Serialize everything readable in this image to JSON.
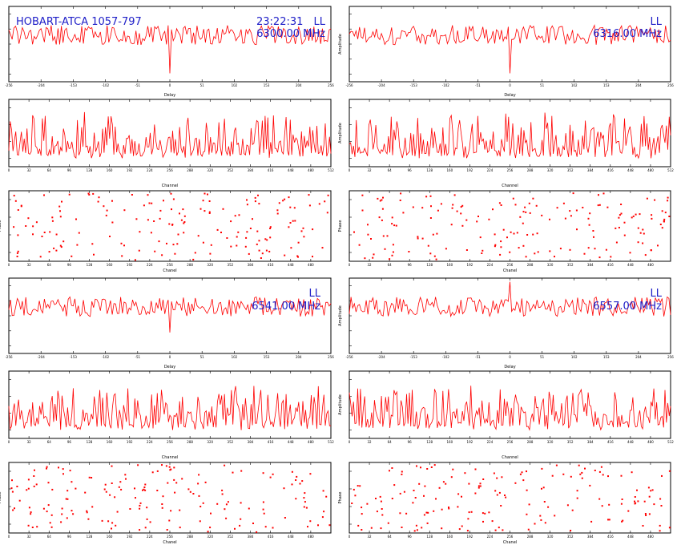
{
  "header": {
    "source": "HOBART-ATCA 1057-797",
    "time": "23:22:31",
    "polarization": "LL"
  },
  "colors": {
    "trace": "#ff0000",
    "annotation": "#2020c8",
    "frame": "#000000"
  },
  "chart_data": [
    {
      "type": "line",
      "group": 0,
      "column": 0,
      "panel": "delay",
      "xlabel": "Delay",
      "ylabel": "",
      "pol": "LL",
      "freq": "6300.00 MHz",
      "xlim": [
        -256,
        256
      ],
      "ylim": [
        -1,
        1
      ],
      "xticks": [
        "-256",
        "-204",
        "-153",
        "-102",
        "-51",
        "0",
        "51",
        "102",
        "153",
        "204",
        "256"
      ],
      "yticks": [
        "",
        "",
        "",
        "",
        ""
      ],
      "spike": {
        "x": 0,
        "direction": "down",
        "depth": 0.82
      }
    },
    {
      "type": "line",
      "group": 0,
      "column": 0,
      "panel": "channel",
      "xlabel": "Channel",
      "ylabel": "",
      "xlim": [
        0,
        512
      ],
      "ylim": [
        0,
        3
      ],
      "xticks": [
        "0",
        "32",
        "64",
        "96",
        "128",
        "160",
        "192",
        "224",
        "256",
        "288",
        "320",
        "352",
        "384",
        "416",
        "448",
        "480",
        "512"
      ],
      "yticks": [
        "",
        "",
        "",
        ""
      ]
    },
    {
      "type": "scatter",
      "group": 0,
      "column": 0,
      "panel": "phase",
      "xlabel": "Chanel",
      "ylabel": "Phase",
      "xlim": [
        0,
        512
      ],
      "ylim": [
        -180,
        180
      ],
      "xticks": [
        "0",
        "32",
        "64",
        "96",
        "128",
        "160",
        "192",
        "224",
        "256",
        "288",
        "320",
        "352",
        "384",
        "416",
        "448",
        "480"
      ],
      "yticks": [
        "",
        "",
        "",
        ""
      ]
    },
    {
      "type": "line",
      "group": 0,
      "column": 1,
      "panel": "delay",
      "xlabel": "Delay",
      "ylabel": "Amplitude",
      "pol": "LL",
      "freq": "6316.00 MHz",
      "xlim": [
        -256,
        256
      ],
      "ylim": [
        -1,
        1
      ],
      "xticks": [
        "-256",
        "-204",
        "-153",
        "-102",
        "-51",
        "0",
        "51",
        "102",
        "153",
        "204",
        "256"
      ],
      "yticks": [
        "",
        "",
        "",
        "",
        ""
      ],
      "spike": {
        "x": 0,
        "direction": "down",
        "depth": 0.82
      }
    },
    {
      "type": "line",
      "group": 0,
      "column": 1,
      "panel": "channel",
      "xlabel": "Channel",
      "ylabel": "Amplitude",
      "xlim": [
        0,
        512
      ],
      "ylim": [
        0,
        3
      ],
      "xticks": [
        "0",
        "32",
        "64",
        "96",
        "128",
        "160",
        "192",
        "224",
        "256",
        "288",
        "320",
        "352",
        "384",
        "416",
        "448",
        "480",
        "512"
      ],
      "yticks": [
        "",
        "",
        "",
        ""
      ]
    },
    {
      "type": "scatter",
      "group": 0,
      "column": 1,
      "panel": "phase",
      "xlabel": "Chanel",
      "ylabel": "Phase",
      "xlim": [
        0,
        512
      ],
      "ylim": [
        -180,
        180
      ],
      "xticks": [
        "0",
        "32",
        "64",
        "96",
        "128",
        "160",
        "192",
        "224",
        "256",
        "288",
        "320",
        "352",
        "384",
        "416",
        "448",
        "480"
      ],
      "yticks": [
        "",
        "",
        "",
        ""
      ]
    },
    {
      "type": "line",
      "group": 1,
      "column": 0,
      "panel": "delay",
      "xlabel": "Delay",
      "ylabel": "",
      "pol": "LL",
      "freq": "6541.00 MHz",
      "xlim": [
        -256,
        256
      ],
      "ylim": [
        -1,
        1
      ],
      "xticks": [
        "-256",
        "-204",
        "-153",
        "-102",
        "-51",
        "0",
        "51",
        "102",
        "153",
        "204",
        "256"
      ],
      "yticks": [
        "",
        "",
        "",
        "",
        ""
      ],
      "spike": {
        "x": 0,
        "direction": "down",
        "depth": 0.55
      }
    },
    {
      "type": "line",
      "group": 1,
      "column": 0,
      "panel": "channel",
      "xlabel": "Channel",
      "ylabel": "",
      "xlim": [
        0,
        512
      ],
      "ylim": [
        0,
        3
      ],
      "xticks": [
        "0",
        "32",
        "64",
        "96",
        "128",
        "160",
        "192",
        "224",
        "256",
        "288",
        "320",
        "352",
        "384",
        "416",
        "448",
        "480",
        "512"
      ],
      "yticks": [
        "",
        "",
        "",
        ""
      ]
    },
    {
      "type": "scatter",
      "group": 1,
      "column": 0,
      "panel": "phase",
      "xlabel": "Chanel",
      "ylabel": "Phase",
      "xlim": [
        0,
        512
      ],
      "ylim": [
        -180,
        180
      ],
      "xticks": [
        "0",
        "32",
        "64",
        "96",
        "128",
        "160",
        "192",
        "224",
        "256",
        "288",
        "320",
        "352",
        "384",
        "416",
        "448",
        "480"
      ],
      "yticks": [
        "",
        "",
        "",
        ""
      ]
    },
    {
      "type": "line",
      "group": 1,
      "column": 1,
      "panel": "delay",
      "xlabel": "Delay",
      "ylabel": "Amplitude",
      "pol": "LL",
      "freq": "6557.00 MHz",
      "xlim": [
        -256,
        256
      ],
      "ylim": [
        -1,
        1
      ],
      "xticks": [
        "-256",
        "-204",
        "-153",
        "-102",
        "-51",
        "0",
        "51",
        "102",
        "153",
        "204",
        "256"
      ],
      "yticks": [
        "",
        "",
        "",
        "",
        ""
      ],
      "spike": {
        "x": 0,
        "direction": "up",
        "depth": 0.5
      }
    },
    {
      "type": "line",
      "group": 1,
      "column": 1,
      "panel": "channel",
      "xlabel": "Channel",
      "ylabel": "Amplitude",
      "xlim": [
        0,
        512
      ],
      "ylim": [
        0,
        3
      ],
      "xticks": [
        "0",
        "32",
        "64",
        "96",
        "128",
        "160",
        "192",
        "224",
        "256",
        "288",
        "320",
        "352",
        "384",
        "416",
        "448",
        "480",
        "512"
      ],
      "yticks": [
        "",
        "",
        "",
        ""
      ]
    },
    {
      "type": "scatter",
      "group": 1,
      "column": 1,
      "panel": "phase",
      "xlabel": "Chanel",
      "ylabel": "Phase",
      "xlim": [
        0,
        512
      ],
      "ylim": [
        -180,
        180
      ],
      "xticks": [
        "0",
        "32",
        "64",
        "96",
        "128",
        "160",
        "192",
        "224",
        "256",
        "288",
        "320",
        "352",
        "384",
        "416",
        "448",
        "480"
      ],
      "yticks": [
        "",
        "",
        "",
        ""
      ]
    }
  ]
}
